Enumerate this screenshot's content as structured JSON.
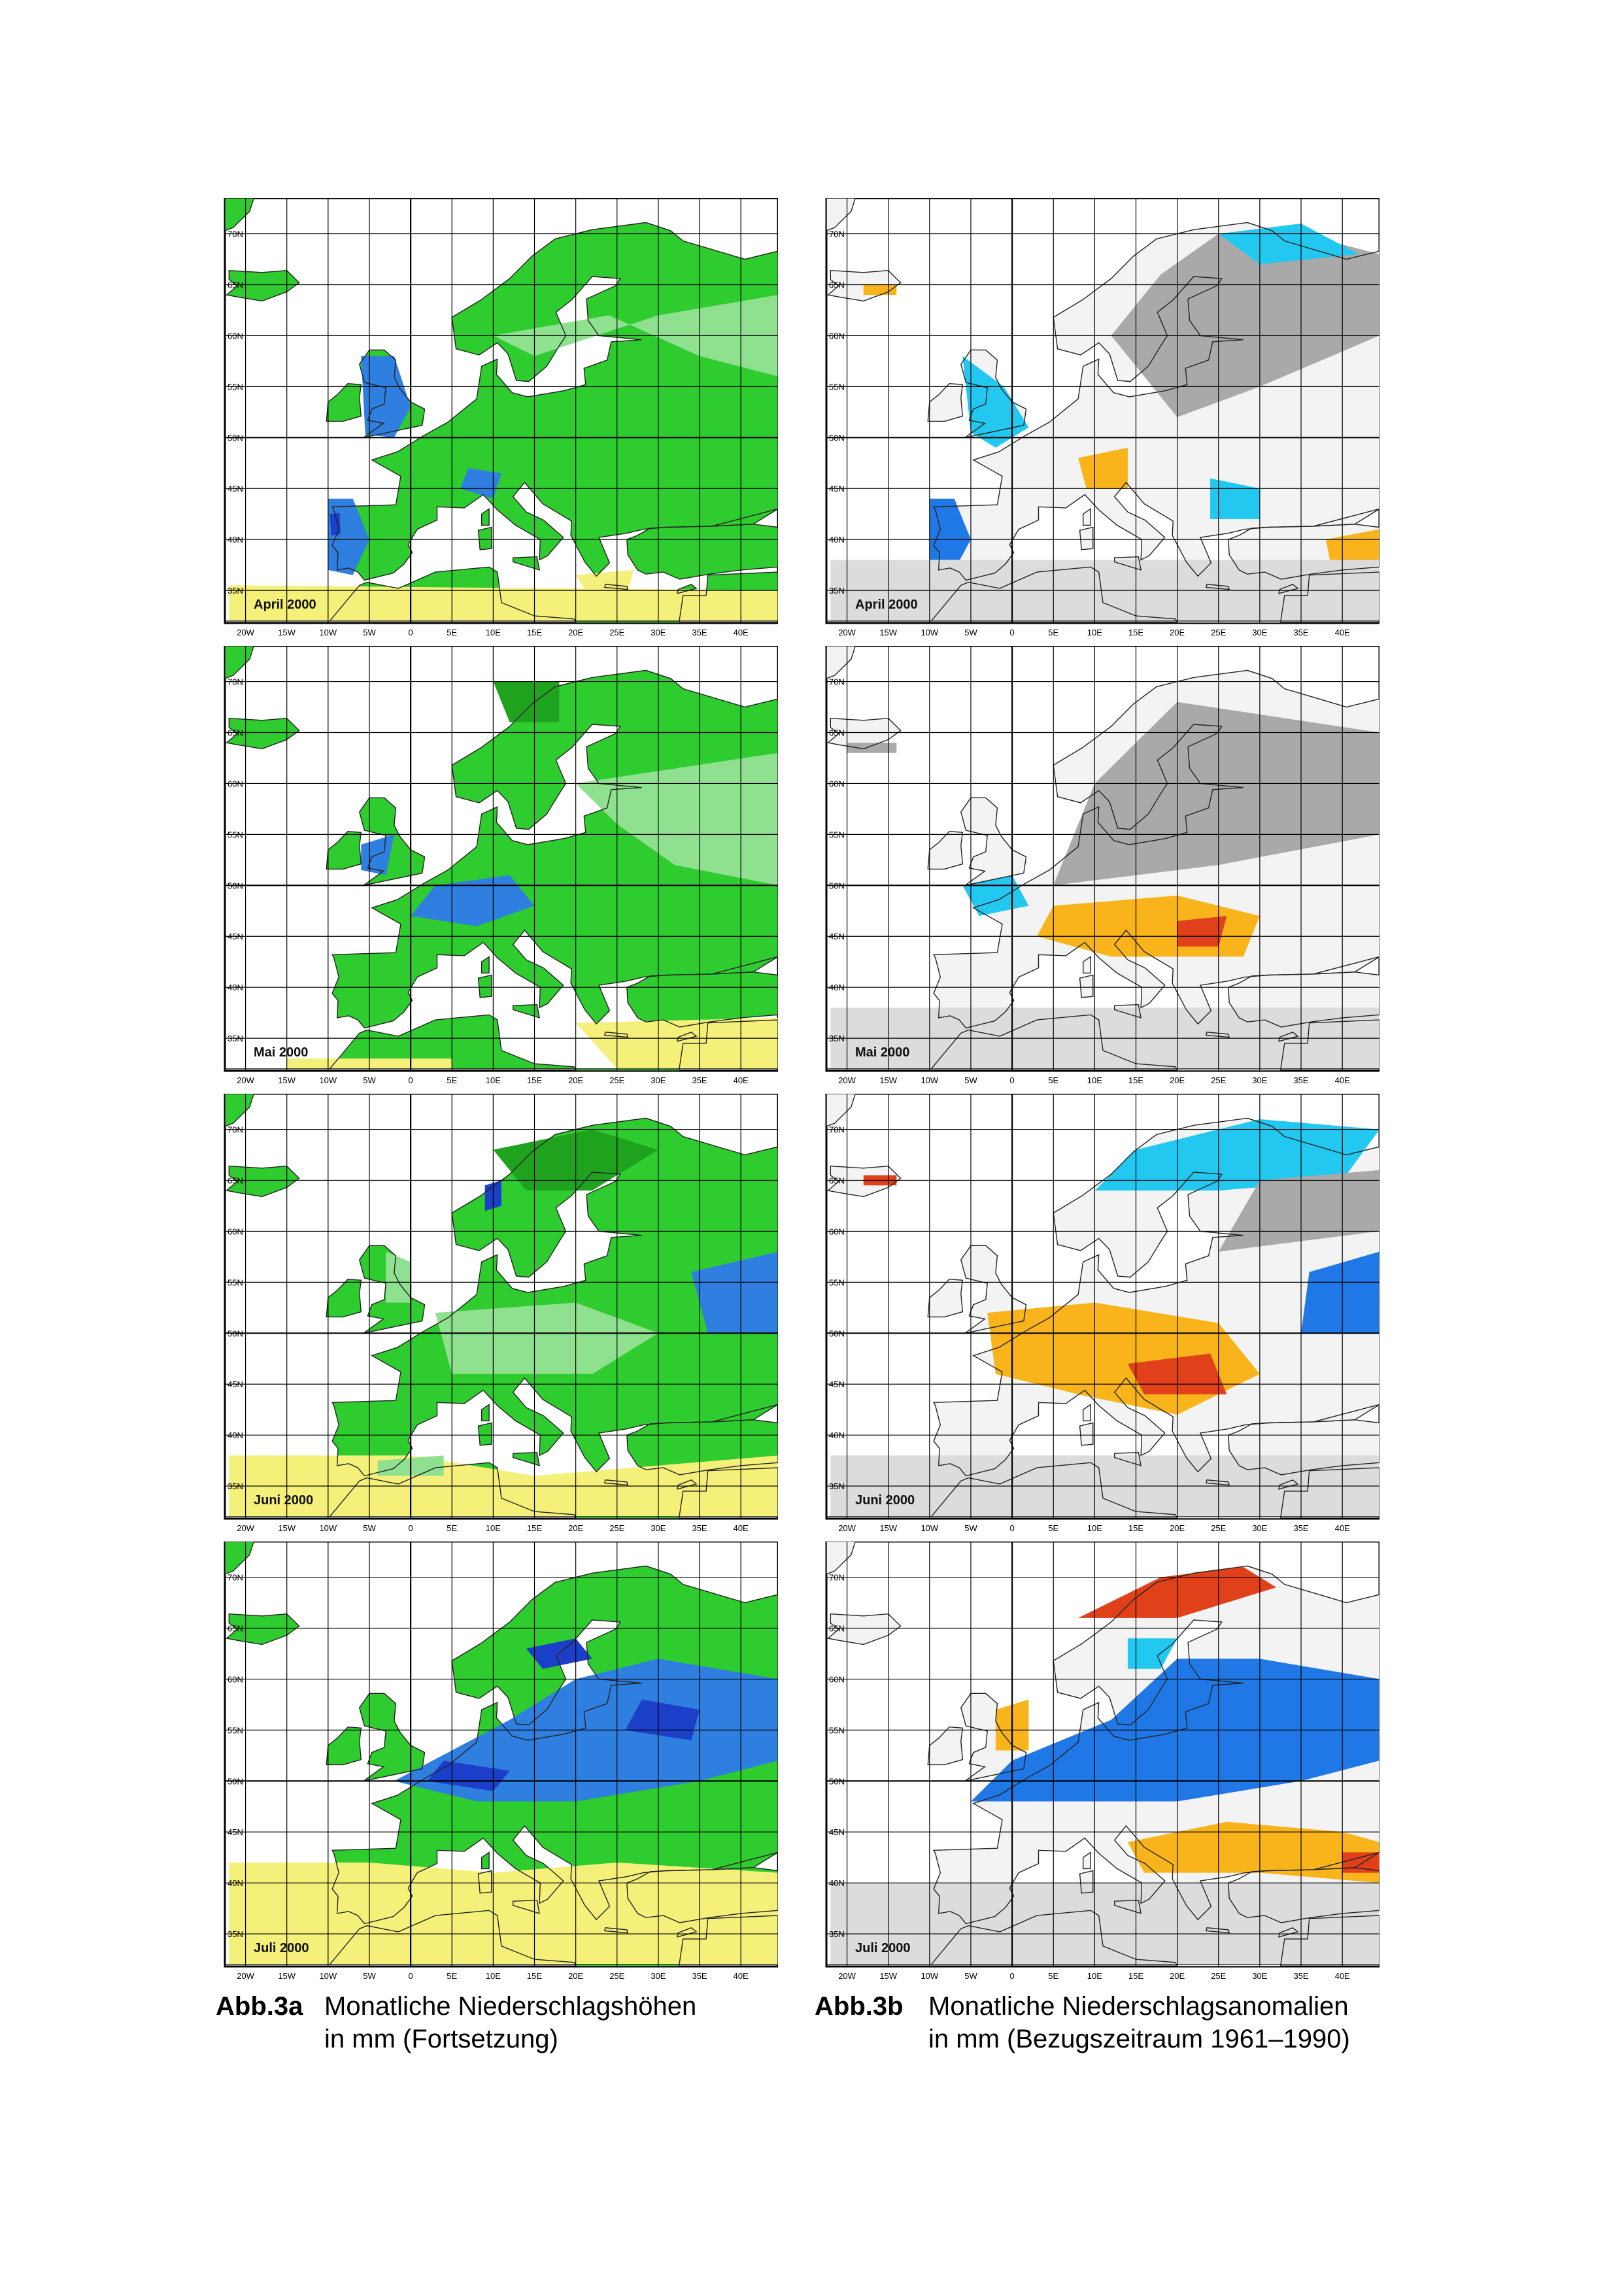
{
  "figure": {
    "lat_ticks": [
      "70N",
      "65N",
      "60N",
      "55N",
      "50N",
      "45N",
      "40N",
      "35N"
    ],
    "lon_ticks": [
      "20W",
      "15W",
      "10W",
      "5W",
      "0",
      "5E",
      "10E",
      "15E",
      "20E",
      "25E",
      "30E",
      "35E",
      "40E"
    ],
    "columns": [
      {
        "id": "3a",
        "caption_tag": "Abb.3a",
        "caption_line1": "Monatliche Niederschlagshöhen",
        "caption_line2": "in mm (Fortsetzung)",
        "kind": "precipitation",
        "months": [
          "April 2000",
          "Mai 2000",
          "Juni 2000",
          "Juli 2000"
        ]
      },
      {
        "id": "3b",
        "caption_tag": "Abb.3b",
        "caption_line1": "Monatliche Niederschlagsanomalien",
        "caption_line2": "in mm (Bezugszeitraum 1961–1990)",
        "kind": "anomaly",
        "months": [
          "April 2000",
          "Mai 2000",
          "Juni 2000",
          "Juli 2000"
        ]
      }
    ]
  },
  "colors": {
    "precip_green": "#2ecc2e",
    "precip_dark_green": "#1fa31f",
    "precip_light_green": "#8fe08f",
    "precip_blue": "#2f7fe0",
    "precip_dark_blue": "#1c3fc9",
    "precip_yellow": "#f4f07a",
    "anom_gray": "#a9a9a9",
    "anom_light_gray": "#dcdcdc",
    "anom_cyan": "#22c8f0",
    "anom_blue": "#1f78e6",
    "anom_orange": "#f8b41a",
    "anom_red": "#e0401a",
    "grid": "#000000"
  }
}
